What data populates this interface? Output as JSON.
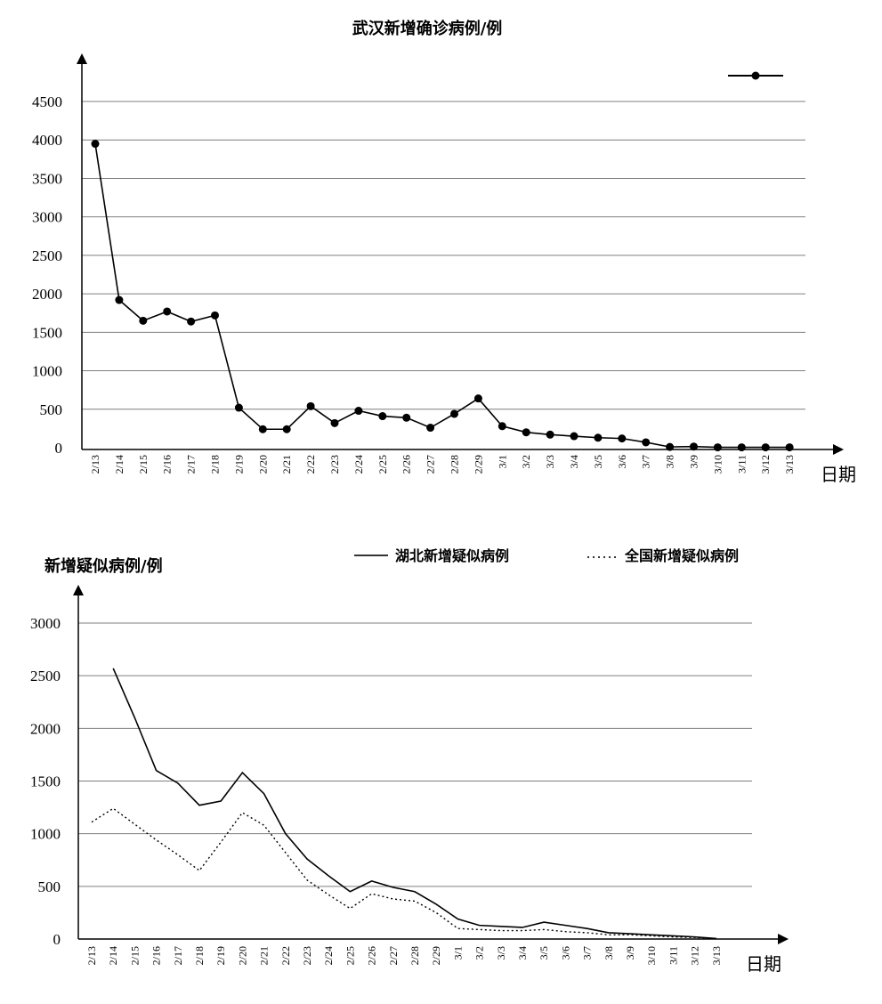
{
  "chart_data": [
    {
      "type": "line",
      "title": "武汉新增确诊病例/例",
      "ylabel": "",
      "xlabel": "日期",
      "ylim": [
        0,
        4500
      ],
      "yticks": [
        0,
        500,
        1000,
        1500,
        2000,
        2500,
        3000,
        3500,
        4000,
        4500
      ],
      "grid": true,
      "legend": "top-right",
      "categories": [
        "2/13",
        "2/14",
        "2/15",
        "2/16",
        "2/17",
        "2/18",
        "2/19",
        "2/20",
        "2/21",
        "2/22",
        "2/23",
        "2/24",
        "2/25",
        "2/26",
        "2/27",
        "2/28",
        "2/29",
        "3/1",
        "3/2",
        "3/3",
        "3/4",
        "3/5",
        "3/6",
        "3/7",
        "3/8",
        "3/9",
        "3/10",
        "3/11",
        "3/12",
        "3/13"
      ],
      "series": [
        {
          "values": [
            3950,
            1920,
            1650,
            1770,
            1640,
            1720,
            520,
            240,
            240,
            540,
            320,
            480,
            410,
            390,
            260,
            440,
            640,
            280,
            200,
            170,
            150,
            130,
            120,
            70,
            10,
            15,
            5,
            5,
            5,
            5
          ],
          "style": "solid-markers",
          "color": "#000000"
        }
      ]
    },
    {
      "type": "line",
      "title": "",
      "ylabel": "新增疑似病例/例",
      "xlabel": "日期",
      "ylim": [
        0,
        3000
      ],
      "yticks": [
        0,
        500,
        1000,
        1500,
        2000,
        2500,
        3000
      ],
      "grid": true,
      "legend": "top-right",
      "categories": [
        "2/13",
        "2/14",
        "2/15",
        "2/16",
        "2/17",
        "2/18",
        "2/19",
        "2/20",
        "2/21",
        "2/22",
        "2/23",
        "2/24",
        "2/25",
        "2/26",
        "2/27",
        "2/28",
        "2/29",
        "3/1",
        "3/2",
        "3/3",
        "3/4",
        "3/5",
        "3/6",
        "3/7",
        "3/8",
        "3/9",
        "3/10",
        "3/11",
        "3/12",
        "3/13"
      ],
      "series": [
        {
          "name": "湖北新增疑似病例",
          "style": "solid",
          "color": "#000000",
          "values": [
            null,
            2570,
            2100,
            1600,
            1480,
            1270,
            1310,
            1580,
            1380,
            1000,
            760,
            600,
            450,
            550,
            490,
            450,
            330,
            190,
            130,
            120,
            110,
            160,
            130,
            100,
            60,
            50,
            40,
            30,
            20,
            5
          ]
        },
        {
          "name": "全国新增疑似病例",
          "style": "dotted",
          "color": "#000000",
          "values": [
            1110,
            1240,
            1090,
            940,
            800,
            650,
            920,
            1200,
            1080,
            820,
            560,
            420,
            290,
            430,
            380,
            360,
            250,
            100,
            90,
            80,
            80,
            90,
            70,
            60,
            40,
            40,
            30,
            20,
            15,
            5
          ]
        }
      ]
    }
  ]
}
